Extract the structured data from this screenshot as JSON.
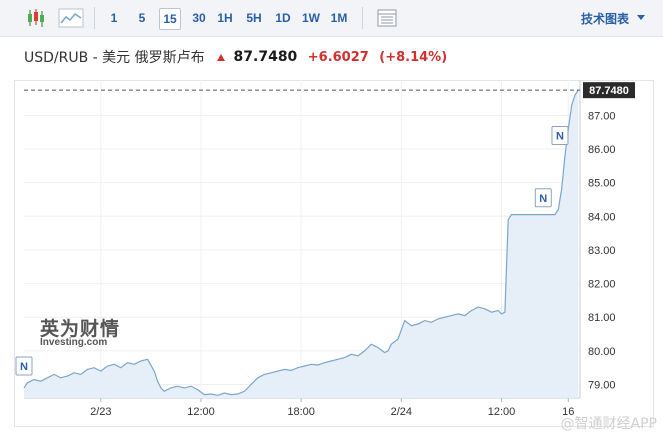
{
  "toolbar": {
    "timeframes": [
      "1",
      "5",
      "15",
      "30",
      "1H",
      "5H",
      "1D",
      "1W",
      "1M"
    ],
    "active_timeframe": "15",
    "tech_chart_label": "技术图表"
  },
  "header": {
    "pair": "USD/RUB - 美元 俄罗斯卢布",
    "price": "87.7480",
    "change": "+6.6027",
    "change_pct": "(+8.14%)",
    "up_color": "#d32f2f"
  },
  "chart_data": {
    "type": "area",
    "ylim": [
      78.6,
      88.05
    ],
    "y_ticks": [
      "79.00",
      "80.00",
      "81.00",
      "82.00",
      "83.00",
      "84.00",
      "85.00",
      "86.00",
      "87.00"
    ],
    "x_tick_labels": [
      "2/23",
      "12:00",
      "18:00",
      "2/24",
      "12:00",
      "16"
    ],
    "x_tick_pos": [
      6,
      12,
      18,
      24,
      30,
      34
    ],
    "xlim": [
      1.4,
      34.7
    ],
    "current_value": 87.748,
    "current_label": "87.7480",
    "line_color": "#7aa6cc",
    "fill_color": "#e6eff8",
    "x": [
      1.4,
      1.6,
      2.0,
      2.4,
      2.8,
      3.2,
      3.6,
      4.0,
      4.4,
      4.8,
      5.2,
      5.6,
      6.0,
      6.4,
      6.8,
      7.2,
      7.6,
      8.0,
      8.4,
      8.8,
      9.2,
      9.4,
      9.6,
      9.8,
      10.2,
      10.6,
      11.0,
      11.4,
      11.8,
      12.2,
      12.6,
      13.0,
      13.4,
      13.8,
      14.2,
      14.6,
      15.0,
      15.4,
      15.8,
      16.2,
      16.6,
      17.0,
      17.4,
      17.8,
      18.2,
      18.6,
      19.0,
      19.4,
      19.8,
      20.2,
      20.6,
      21.0,
      21.4,
      21.8,
      22.2,
      22.6,
      23.0,
      23.2,
      23.4,
      23.8,
      24.2,
      24.6,
      25.0,
      25.4,
      25.8,
      26.2,
      26.6,
      27.0,
      27.4,
      27.8,
      28.2,
      28.6,
      29.0,
      29.4,
      29.8,
      30.0,
      30.2,
      30.4,
      30.6,
      31.0,
      31.4,
      31.8,
      32.2,
      32.6,
      33.0,
      33.2,
      33.4,
      33.6,
      33.8,
      34.0,
      34.2,
      34.4,
      34.6
    ],
    "y": [
      78.9,
      79.05,
      79.15,
      79.1,
      79.2,
      79.3,
      79.2,
      79.25,
      79.35,
      79.3,
      79.45,
      79.5,
      79.4,
      79.55,
      79.6,
      79.5,
      79.65,
      79.6,
      79.7,
      79.75,
      79.4,
      79.1,
      78.9,
      78.8,
      78.9,
      78.95,
      78.9,
      78.95,
      78.85,
      78.7,
      78.72,
      78.68,
      78.75,
      78.7,
      78.72,
      78.8,
      79.0,
      79.2,
      79.3,
      79.35,
      79.4,
      79.45,
      79.42,
      79.5,
      79.55,
      79.6,
      79.58,
      79.65,
      79.7,
      79.75,
      79.8,
      79.9,
      79.85,
      80.0,
      80.2,
      80.1,
      79.95,
      80.0,
      80.2,
      80.35,
      80.9,
      80.75,
      80.8,
      80.9,
      80.85,
      80.95,
      81.0,
      81.05,
      81.1,
      81.05,
      81.2,
      81.3,
      81.25,
      81.15,
      81.2,
      81.1,
      81.15,
      83.9,
      84.05,
      84.05,
      84.05,
      84.05,
      84.05,
      84.05,
      84.05,
      84.05,
      84.2,
      84.8,
      85.8,
      86.6,
      87.3,
      87.6,
      87.75
    ],
    "markers": [
      {
        "label": "N",
        "x": 1.4,
        "y": 79.55
      },
      {
        "label": "N",
        "x": 32.5,
        "y": 84.55
      },
      {
        "label": "N",
        "x": 33.5,
        "y": 86.4
      }
    ]
  },
  "watermark": {
    "brand": "英为财情",
    "site": "Investing.com",
    "app": "@智通财经APP"
  }
}
